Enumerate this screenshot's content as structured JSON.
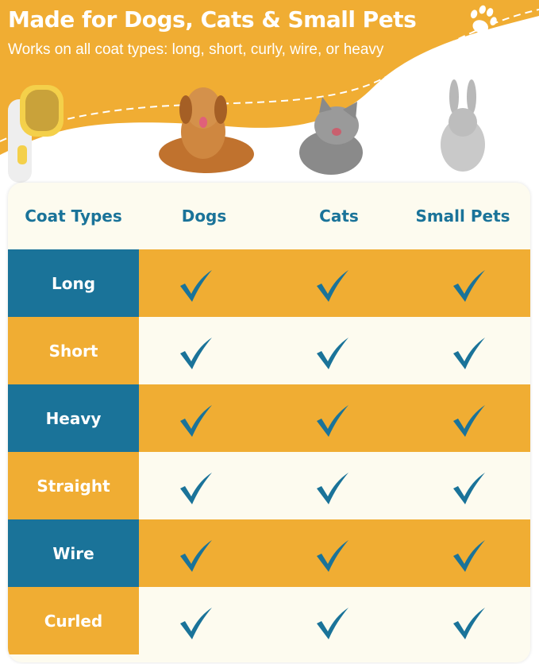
{
  "header": {
    "title": "Made for Dogs, Cats & Small Pets",
    "subtitle": "Works on all coat types: long, short, curly, wire, or heavy",
    "icon": "paw-icon"
  },
  "colors": {
    "orange": "#f0ad33",
    "blue": "#1a7399",
    "cream": "#fdfbef"
  },
  "images": [
    "grooming-brush",
    "golden-retriever",
    "tabby-cat",
    "gray-rabbit"
  ],
  "table": {
    "columns": [
      "Coat Types",
      "Dogs",
      "Cats",
      "Small Pets"
    ],
    "rows": [
      {
        "label": "Long",
        "dogs": true,
        "cats": true,
        "small_pets": true
      },
      {
        "label": "Short",
        "dogs": true,
        "cats": true,
        "small_pets": true
      },
      {
        "label": "Heavy",
        "dogs": true,
        "cats": true,
        "small_pets": true
      },
      {
        "label": "Straight",
        "dogs": true,
        "cats": true,
        "small_pets": true
      },
      {
        "label": "Wire",
        "dogs": true,
        "cats": true,
        "small_pets": true
      },
      {
        "label": "Curled",
        "dogs": true,
        "cats": true,
        "small_pets": true
      }
    ]
  }
}
